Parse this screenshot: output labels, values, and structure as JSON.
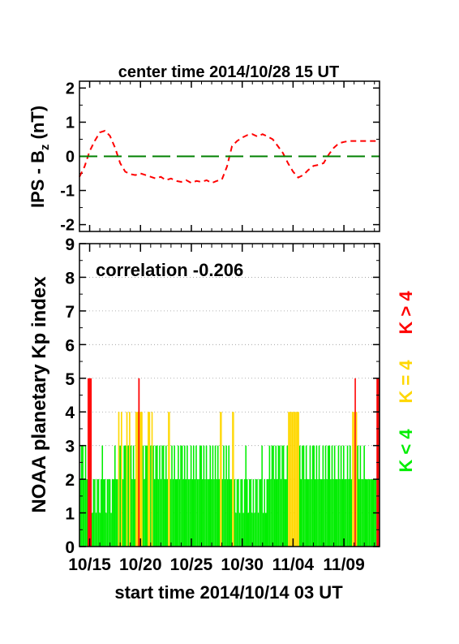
{
  "chart_data": [
    {
      "type": "line",
      "title": "center time 2014/10/28 15 UT",
      "ylabel": "IPS - B",
      "ylabel_sub": "z",
      "ylabel_unit": " (nT)",
      "ylim": [
        -2.2,
        2.2
      ],
      "yticks": [
        "2",
        "1",
        "0",
        "-1",
        "-2"
      ],
      "xlim_days": [
        0,
        29.5
      ],
      "series": [
        {
          "style": "dashed",
          "color": "#ff0000",
          "x": [
            0,
            0.5,
            1.0,
            1.5,
            2.0,
            2.5,
            3.0,
            3.5,
            4.0,
            4.5,
            5.0,
            5.5,
            6.0,
            6.5,
            7.0,
            7.5,
            8.0,
            8.5,
            9.0,
            9.5,
            10.0,
            10.5,
            11.0,
            11.5,
            12.0,
            12.5,
            13.0,
            13.5,
            14.0,
            14.5,
            15.0,
            15.5,
            16.0,
            16.5,
            17.0,
            17.5,
            18.0,
            18.5,
            19.0,
            19.5,
            20.0,
            20.5,
            21.0,
            21.5,
            22.0,
            22.5,
            23.0,
            23.5,
            24.0,
            24.5,
            25.0,
            25.5,
            26.0,
            26.5,
            27.0,
            27.5,
            28.0,
            28.5,
            29.0,
            29.5
          ],
          "y": [
            -0.6,
            -0.3,
            0.15,
            0.45,
            0.7,
            0.75,
            0.6,
            0.25,
            -0.2,
            -0.45,
            -0.52,
            -0.55,
            -0.5,
            -0.55,
            -0.6,
            -0.65,
            -0.6,
            -0.7,
            -0.65,
            -0.72,
            -0.75,
            -0.7,
            -0.78,
            -0.72,
            -0.75,
            -0.7,
            -0.78,
            -0.72,
            -0.68,
            -0.3,
            0.3,
            0.45,
            0.55,
            0.62,
            0.65,
            0.58,
            0.65,
            0.58,
            0.5,
            0.3,
            0.1,
            -0.2,
            -0.45,
            -0.62,
            -0.55,
            -0.4,
            -0.28,
            -0.25,
            -0.2,
            0.05,
            0.25,
            0.38,
            0.42,
            0.45,
            0.45,
            0.45,
            0.45,
            0.45,
            0.45,
            0.45
          ]
        },
        {
          "style": "long-dashed",
          "color": "#008000",
          "x": [
            0,
            29.5
          ],
          "y": [
            0,
            0
          ]
        }
      ]
    },
    {
      "type": "bar",
      "annotation": "correlation -0.206",
      "ylabel": "NOAA planetary Kp index",
      "xlabel": "start time 2014/10/14 03 UT",
      "ylim": [
        0,
        9
      ],
      "yticks": [
        "0",
        "1",
        "2",
        "3",
        "4",
        "5",
        "6",
        "7",
        "8",
        "9"
      ],
      "xticks": [
        {
          "day": 1.0,
          "label": "10/15"
        },
        {
          "day": 6.0,
          "label": "10/20"
        },
        {
          "day": 11.0,
          "label": "10/25"
        },
        {
          "day": 16.0,
          "label": "10/30"
        },
        {
          "day": 21.0,
          "label": "11/04"
        },
        {
          "day": 26.0,
          "label": "11/09"
        }
      ],
      "xlim_days": [
        0,
        29.5
      ],
      "grid": "horizontal dotted",
      "legend": [
        {
          "label": "K < 4",
          "color": "#00ee00"
        },
        {
          "label": "K = 4",
          "color": "#ffd700"
        },
        {
          "label": "K > 4",
          "color": "#ff0000"
        }
      ],
      "kp_segments": [
        {
          "from": 0.0,
          "to": 0.8,
          "values": [
            2,
            3,
            3,
            2,
            3,
            2
          ]
        },
        {
          "from": 0.8,
          "to": 1.2,
          "values": [
            5,
            5,
            5
          ]
        },
        {
          "from": 1.2,
          "to": 3.8,
          "values": [
            1,
            2,
            2,
            1,
            2,
            2,
            1,
            2,
            3,
            2,
            2,
            1,
            2,
            2,
            2,
            1,
            2,
            2,
            3,
            2,
            2
          ]
        },
        {
          "from": 3.8,
          "to": 4.2,
          "values": [
            4,
            3,
            4
          ]
        },
        {
          "from": 4.2,
          "to": 4.6,
          "values": [
            2,
            3,
            3
          ]
        },
        {
          "from": 4.6,
          "to": 5.0,
          "values": [
            4,
            3,
            4
          ]
        },
        {
          "from": 5.0,
          "to": 5.5,
          "values": [
            3,
            2,
            3,
            2
          ]
        },
        {
          "from": 5.5,
          "to": 6.2,
          "values": [
            4,
            4,
            5,
            4,
            4
          ]
        },
        {
          "from": 6.2,
          "to": 6.7,
          "values": [
            3,
            2,
            3,
            3
          ]
        },
        {
          "from": 6.7,
          "to": 7.2,
          "values": [
            4,
            4,
            3,
            4
          ]
        },
        {
          "from": 7.2,
          "to": 8.7,
          "values": [
            3,
            2,
            3,
            3,
            2,
            3,
            2,
            3,
            3,
            2,
            3,
            2
          ]
        },
        {
          "from": 8.7,
          "to": 8.9,
          "values": [
            4,
            4
          ]
        },
        {
          "from": 8.9,
          "to": 13.8,
          "values": [
            2,
            3,
            2,
            3,
            2,
            2,
            3,
            2,
            3,
            3,
            2,
            3,
            2,
            3,
            2,
            2,
            3,
            2,
            3,
            2,
            3,
            2,
            2,
            3,
            3,
            2,
            3,
            2,
            3,
            2,
            2,
            3,
            2,
            3,
            2,
            3,
            2,
            3,
            2
          ]
        },
        {
          "from": 13.8,
          "to": 14.0,
          "values": [
            4,
            4
          ]
        },
        {
          "from": 14.0,
          "to": 15.0,
          "values": [
            2,
            3,
            2,
            3,
            2,
            3,
            2,
            2
          ]
        },
        {
          "from": 15.0,
          "to": 15.2,
          "values": [
            4,
            4
          ]
        },
        {
          "from": 15.2,
          "to": 18.5,
          "values": [
            2,
            1,
            2,
            2,
            1,
            2,
            2,
            1,
            2,
            3,
            2,
            1,
            2,
            2,
            1,
            2,
            1,
            2,
            2,
            1,
            2,
            2,
            3,
            1,
            2,
            1,
            2
          ]
        },
        {
          "from": 18.5,
          "to": 20.5,
          "values": [
            2,
            3,
            2,
            3,
            3,
            2,
            3,
            2,
            3,
            3,
            2,
            3,
            3,
            2,
            2,
            3
          ]
        },
        {
          "from": 20.5,
          "to": 21.6,
          "values": [
            4,
            4,
            4,
            4,
            4,
            4,
            4,
            4,
            4
          ]
        },
        {
          "from": 21.6,
          "to": 26.8,
          "values": [
            3,
            2,
            3,
            3,
            2,
            3,
            2,
            2,
            3,
            2,
            3,
            3,
            2,
            3,
            2,
            3,
            2,
            2,
            3,
            2,
            3,
            2,
            3,
            3,
            2,
            3,
            2,
            3,
            2,
            2,
            3,
            2,
            3,
            2,
            3,
            2,
            2,
            3,
            2,
            3,
            2
          ]
        },
        {
          "from": 26.8,
          "to": 27.3,
          "values": [
            4,
            4,
            5,
            4
          ]
        },
        {
          "from": 27.3,
          "to": 29.2,
          "values": [
            3,
            2,
            3,
            2,
            2,
            3,
            2,
            2,
            2,
            2,
            2,
            2,
            2,
            2,
            2
          ]
        },
        {
          "from": 29.2,
          "to": 29.5,
          "values": [
            5,
            5
          ]
        }
      ]
    }
  ]
}
